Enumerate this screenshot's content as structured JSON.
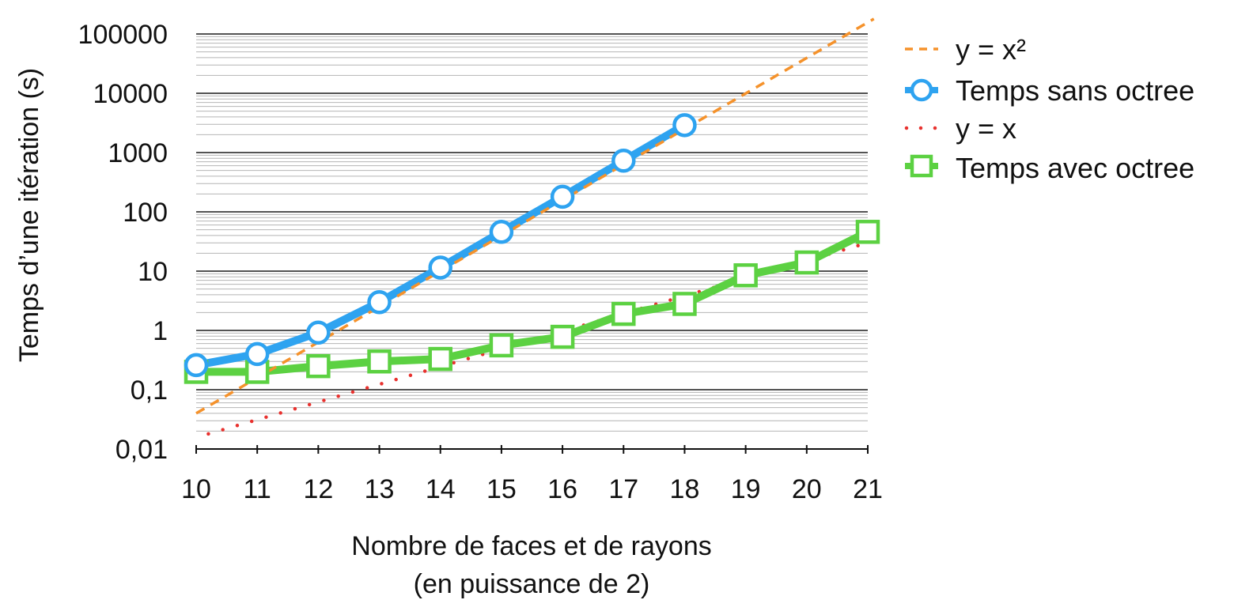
{
  "chart_data": {
    "type": "line",
    "title": "",
    "xlabel": "Nombre de faces et de rayons",
    "xlabel_line2": "(en puissance de 2)",
    "ylabel": "Temps d’une itération (s)",
    "y_scale": "log",
    "ylim": [
      0.01,
      100000
    ],
    "xlim": [
      10,
      21
    ],
    "x_ticks": [
      10,
      11,
      12,
      13,
      14,
      15,
      16,
      17,
      18,
      19,
      20,
      21
    ],
    "x_tick_labels": [
      "10",
      "11",
      "12",
      "13",
      "14",
      "15",
      "16",
      "17",
      "18",
      "19",
      "20",
      "21"
    ],
    "y_ticks": [
      0.01,
      0.1,
      1,
      10,
      100,
      1000,
      10000,
      100000
    ],
    "y_tick_labels": [
      "0,01",
      "0,1",
      "1",
      "10",
      "100",
      "1000",
      "10000",
      "100000"
    ],
    "grid": "horizontal, major and minor",
    "legend_position": "right",
    "series": [
      {
        "name": "y = x²",
        "style": "dashed",
        "color": "#F5922B",
        "x": [
          10,
          21.1
        ],
        "y": [
          0.04,
          180000
        ]
      },
      {
        "name": "Temps sans octree",
        "style": "solid-circle",
        "color": "#2EA3F0",
        "x": [
          10,
          11,
          12,
          13,
          14,
          15,
          16,
          17,
          18
        ],
        "y": [
          0.26,
          0.4,
          0.92,
          3.0,
          11.5,
          46,
          180,
          730,
          2900
        ]
      },
      {
        "name": "y = x",
        "style": "dotted",
        "color": "#E8312E",
        "x": [
          10.2,
          21
        ],
        "y": [
          0.018,
          30
        ]
      },
      {
        "name": "Temps avec octree",
        "style": "solid-square",
        "color": "#5CD142",
        "x": [
          10,
          11,
          12,
          13,
          14,
          15,
          16,
          17,
          18,
          19,
          20,
          21
        ],
        "y": [
          0.2,
          0.2,
          0.25,
          0.3,
          0.33,
          0.56,
          0.78,
          1.9,
          2.8,
          8.5,
          14,
          46
        ]
      }
    ]
  }
}
